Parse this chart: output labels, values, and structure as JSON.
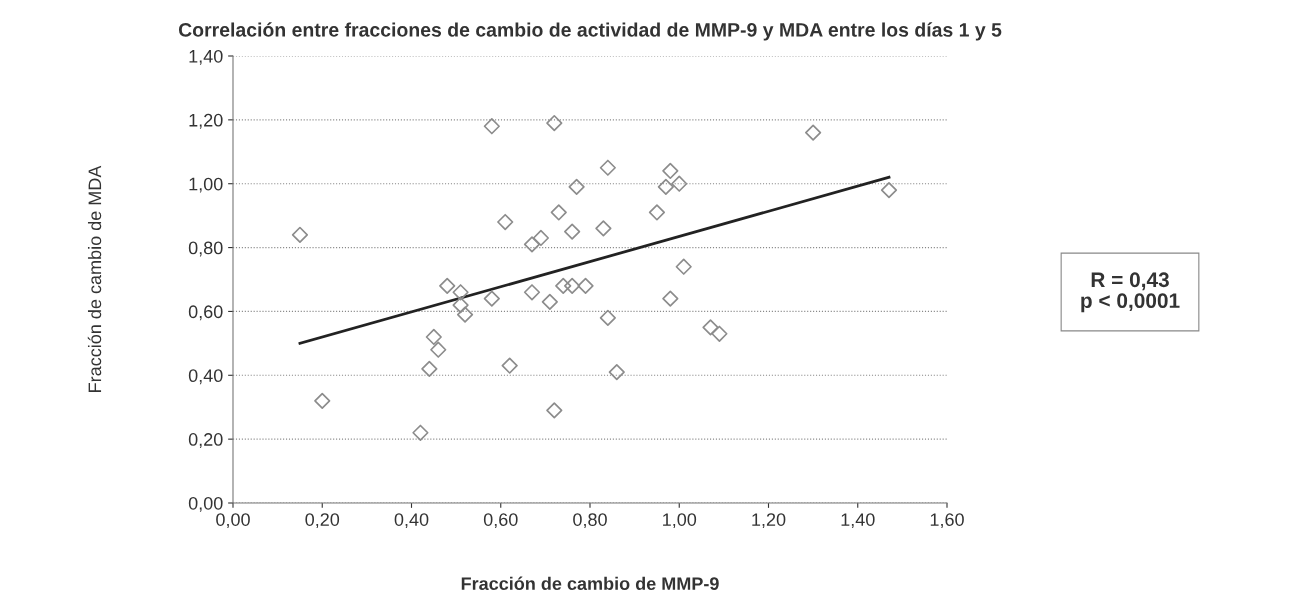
{
  "chart_data": {
    "type": "scatter",
    "title": "Correlación entre fracciones de cambio de actividad de MMP-9 y MDA entre los días 1 y 5",
    "xlabel": "Fracción de cambio de MMP-9",
    "ylabel": "Fracción de cambio de MDA",
    "series": [
      {
        "color": "#8c8c8c",
        "marker": "diamond",
        "x": [
          0.15,
          0.2,
          0.42,
          0.44,
          0.45,
          0.46,
          0.48,
          0.51,
          0.51,
          0.52,
          0.58,
          0.58,
          0.61,
          0.62,
          0.67,
          0.67,
          0.69,
          0.71,
          0.72,
          0.72,
          0.73,
          0.74,
          0.76,
          0.76,
          0.77,
          0.79,
          0.83,
          0.84,
          0.84,
          0.86,
          0.95,
          0.97,
          0.98,
          0.98,
          1.0,
          1.01,
          1.07,
          1.09,
          1.3,
          1.47
        ],
        "values": [
          0.84,
          0.32,
          0.22,
          0.42,
          0.52,
          0.48,
          0.68,
          0.66,
          0.62,
          0.59,
          1.18,
          0.64,
          0.88,
          0.43,
          0.66,
          0.81,
          0.83,
          0.63,
          1.19,
          0.29,
          0.91,
          0.68,
          0.68,
          0.85,
          0.99,
          0.68,
          0.86,
          1.05,
          0.58,
          0.41,
          0.91,
          0.99,
          1.04,
          0.64,
          1.0,
          0.74,
          0.55,
          0.53,
          1.16,
          0.98
        ]
      },
      {
        "type": "line",
        "color": "#222222",
        "marker": "none",
        "x": [
          0.15,
          1.47
        ],
        "values": [
          0.5,
          1.02
        ]
      }
    ],
    "annotations": [
      "R = 0,43\np < 0,0001"
    ],
    "xlim": [
      0,
      1.6
    ],
    "ylim": [
      0,
      1.4
    ],
    "xticks": [
      {
        "value": 0,
        "label": "0,00"
      },
      {
        "value": 0.2,
        "label": "0,20"
      },
      {
        "value": 0.4,
        "label": "0,40"
      },
      {
        "value": 0.6,
        "label": "0,60"
      },
      {
        "value": 0.8,
        "label": "0,80"
      },
      {
        "value": 1.0,
        "label": "1,00"
      },
      {
        "value": 1.2,
        "label": "1,20"
      },
      {
        "value": 1.4,
        "label": "1,40"
      },
      {
        "value": 1.6,
        "label": "1,60"
      }
    ],
    "yticks": [
      {
        "value": 0,
        "label": "0,00"
      },
      {
        "value": 0.2,
        "label": "0,20"
      },
      {
        "value": 0.4,
        "label": "0,40"
      },
      {
        "value": 0.6,
        "label": "0,60"
      },
      {
        "value": 0.8,
        "label": "0,80"
      },
      {
        "value": 1.0,
        "label": "1,00"
      },
      {
        "value": 1.2,
        "label": "1,20"
      },
      {
        "value": 1.4,
        "label": "1,40"
      }
    ],
    "grid": "y",
    "legend": false
  }
}
